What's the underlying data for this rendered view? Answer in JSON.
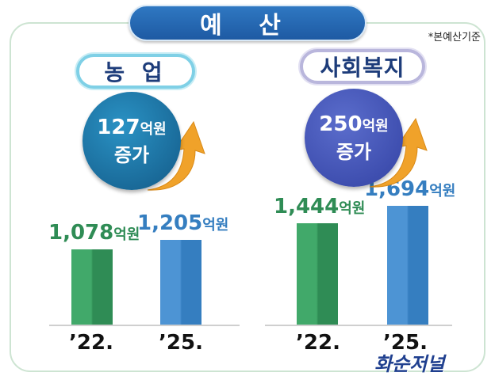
{
  "header": {
    "title": "예 산",
    "basis_note": "*본예산기준"
  },
  "panels": [
    {
      "category": "농 업",
      "increase_amount": "127",
      "increase_unit": "억원",
      "increase_label": "증가",
      "bars": [
        {
          "year": "’22.",
          "value_text": "1,078",
          "unit": "억원"
        },
        {
          "year": "’25.",
          "value_text": "1,205",
          "unit": "억원"
        }
      ]
    },
    {
      "category": "사회복지",
      "increase_amount": "250",
      "increase_unit": "억원",
      "increase_label": "증가",
      "bars": [
        {
          "year": "’22.",
          "value_text": "1,444",
          "unit": "억원"
        },
        {
          "year": "’25.",
          "value_text": "1,694",
          "unit": "억원"
        }
      ]
    }
  ],
  "colors": {
    "year_22": "#41a96a",
    "year_25": "#4d94d4",
    "title_bg": "#1e5aa3",
    "arrow": "#f0a22a"
  },
  "logo_text": "화순저널",
  "chart_data": [
    {
      "type": "bar",
      "title": "농 업",
      "categories": [
        "’22.",
        "’25."
      ],
      "values": [
        1078,
        1205
      ],
      "unit": "억원"
    },
    {
      "type": "bar",
      "title": "사회복지",
      "categories": [
        "’22.",
        "’25."
      ],
      "values": [
        1444,
        1694
      ],
      "unit": "억원"
    }
  ]
}
